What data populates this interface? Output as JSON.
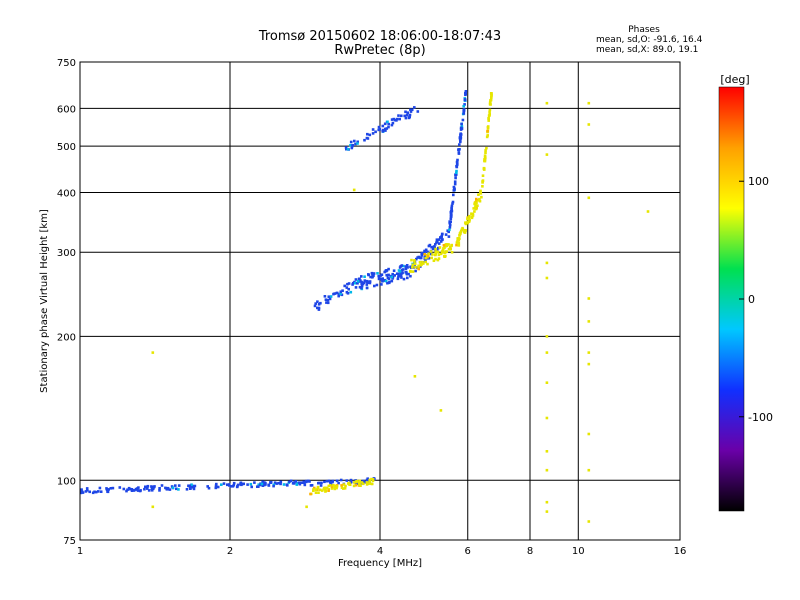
{
  "chart_data": {
    "type": "scatter",
    "title": "Tromsø 20150602 18:06:00-18:07:43",
    "subtitle": "RwPretec (8p)",
    "xlabel": "Frequency [MHz]",
    "ylabel": "Stationary phase Virtual Height [km]",
    "x_scale": "log2",
    "y_scale": "log",
    "xlim": [
      1,
      16
    ],
    "ylim": [
      75,
      750
    ],
    "x_ticks": [
      1,
      2,
      4,
      6,
      8,
      10,
      16
    ],
    "x_tick_labels": [
      "1",
      "2",
      "4",
      "6",
      "8",
      "10",
      "16"
    ],
    "y_ticks": [
      75,
      100,
      200,
      300,
      400,
      500,
      600,
      750
    ],
    "y_tick_labels": [
      "75",
      "100",
      "200",
      "300",
      "400",
      "500",
      "600",
      "750"
    ],
    "grid": true,
    "phases_box": {
      "heading": "Phases",
      "line1": "mean, sd,O: -91.6, 16.4",
      "line2": "mean, sd,X:  89.0, 19.1"
    },
    "colorbar": {
      "label": "[deg]",
      "range": [
        -180,
        180
      ],
      "ticks": [
        100,
        0,
        -100
      ],
      "tick_labels": [
        "100",
        "0",
        "-100"
      ],
      "colors": [
        "#000000",
        "#6a00a8",
        "#1030ff",
        "#00c8ff",
        "#00e050",
        "#ffff00",
        "#ffa000",
        "#ff0000"
      ]
    },
    "series": [
      {
        "name": "O-mode low trace",
        "color": "#1e46e6",
        "phase": -92,
        "segments": [
          {
            "x0": 1.0,
            "x1": 2.9,
            "h0": 95,
            "h1": 99,
            "n": 170,
            "jitter": 0.012
          },
          {
            "x0": 2.9,
            "x1": 3.9,
            "h0": 98,
            "h1": 100,
            "n": 40,
            "jitter": 0.012
          }
        ]
      },
      {
        "name": "X-mode low trace",
        "color": "#e6e600",
        "phase": 89,
        "segments": [
          {
            "x0": 2.9,
            "x1": 3.95,
            "h0": 95,
            "h1": 100,
            "n": 70,
            "jitter": 0.015
          }
        ]
      },
      {
        "name": "O-mode F trace",
        "color": "#1e46e6",
        "phase": -92,
        "segments": [
          {
            "x0": 2.95,
            "x1": 3.6,
            "h0": 230,
            "h1": 258,
            "n": 40,
            "jitter": 0.025
          },
          {
            "x0": 3.6,
            "x1": 4.6,
            "h0": 258,
            "h1": 275,
            "n": 110,
            "jitter": 0.035
          },
          {
            "x0": 4.6,
            "x1": 5.5,
            "h0": 275,
            "h1": 330,
            "n": 70,
            "jitter": 0.03
          },
          {
            "x0": 5.5,
            "x1": 5.95,
            "h0": 330,
            "h1": 650,
            "n": 90,
            "jitter": 0.02
          },
          {
            "x0": 3.4,
            "x1": 4.8,
            "h0": 495,
            "h1": 600,
            "n": 60,
            "jitter": 0.02
          }
        ]
      },
      {
        "name": "X-mode F trace",
        "color": "#e6e600",
        "phase": 89,
        "segments": [
          {
            "x0": 4.6,
            "x1": 5.7,
            "h0": 280,
            "h1": 310,
            "n": 70,
            "jitter": 0.03
          },
          {
            "x0": 5.7,
            "x1": 6.4,
            "h0": 310,
            "h1": 400,
            "n": 70,
            "jitter": 0.025
          },
          {
            "x0": 6.4,
            "x1": 6.7,
            "h0": 400,
            "h1": 650,
            "n": 50,
            "jitter": 0.02
          }
        ]
      },
      {
        "name": "scattered points",
        "color": "#e6e600",
        "phase": 90,
        "points": [
          [
            8.65,
            615
          ],
          [
            8.65,
            480
          ],
          [
            8.65,
            285
          ],
          [
            8.65,
            265
          ],
          [
            8.65,
            200
          ],
          [
            8.65,
            185
          ],
          [
            8.65,
            160
          ],
          [
            8.65,
            135
          ],
          [
            8.65,
            115
          ],
          [
            8.65,
            105
          ],
          [
            8.65,
            90
          ],
          [
            8.65,
            86
          ],
          [
            10.5,
            615
          ],
          [
            10.5,
            555
          ],
          [
            10.5,
            390
          ],
          [
            10.5,
            240
          ],
          [
            10.5,
            215
          ],
          [
            10.5,
            185
          ],
          [
            10.5,
            175
          ],
          [
            10.5,
            125
          ],
          [
            10.5,
            105
          ],
          [
            10.5,
            82
          ],
          [
            13.8,
            365
          ],
          [
            1.4,
            185
          ],
          [
            5.3,
            140
          ],
          [
            1.4,
            88
          ],
          [
            2.85,
            88
          ],
          [
            4.7,
            165
          ],
          [
            3.55,
            405
          ]
        ]
      }
    ]
  }
}
